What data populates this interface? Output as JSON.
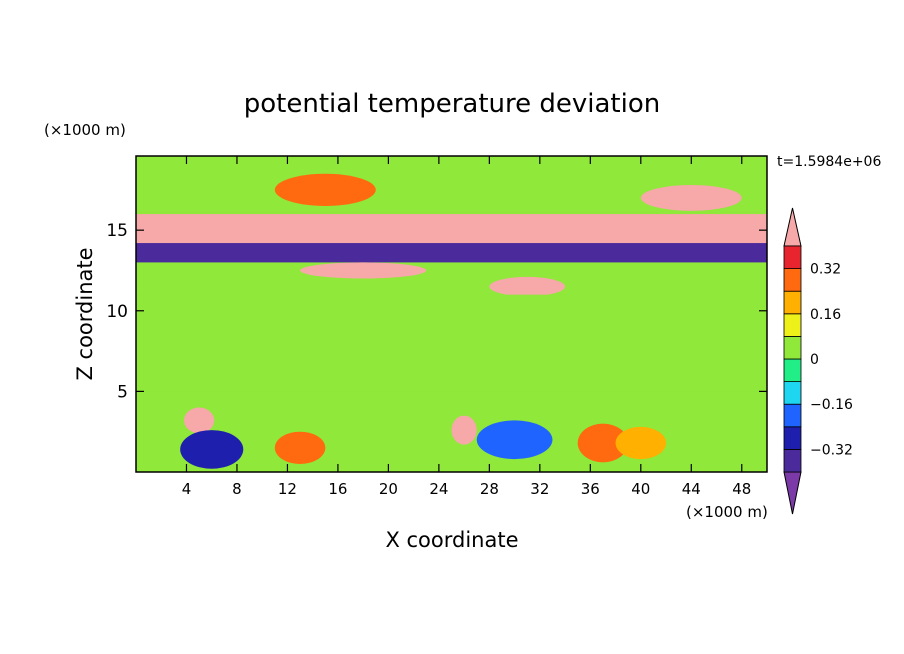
{
  "chart_data": {
    "type": "heatmap",
    "title": "potential temperature deviation",
    "xlabel": "X coordinate",
    "ylabel": "Z coordinate",
    "x_unit": "(×1000 m)",
    "y_unit": "(×1000 m)",
    "time_label": "t=1.5984e+06",
    "xlim": [
      0,
      50
    ],
    "ylim": [
      0,
      19.6
    ],
    "x_ticks": [
      "4",
      "8",
      "12",
      "16",
      "20",
      "24",
      "28",
      "32",
      "36",
      "40",
      "44",
      "48"
    ],
    "y_ticks": [
      "5",
      "10",
      "15"
    ],
    "colorbar": {
      "levels": [
        -0.4,
        -0.32,
        -0.24,
        -0.16,
        -0.08,
        0,
        0.08,
        0.16,
        0.24,
        0.32,
        0.4
      ],
      "tick_labels": [
        "0.32",
        "0.16",
        "0",
        "−0.16",
        "−0.32"
      ],
      "colors_low_to_high": [
        "#7b3aa8",
        "#4b2b9b",
        "#1f1fae",
        "#1f64ff",
        "#1fd6f0",
        "#22ee88",
        "#8fe83a",
        "#eef01a",
        "#ffb000",
        "#ff6a10",
        "#e8242e",
        "#f7a8a8"
      ],
      "extend": "both"
    },
    "features": [
      {
        "shape": "band",
        "x": [
          0,
          50
        ],
        "z": [
          14.0,
          16.0
        ],
        "value": 0.48
      },
      {
        "shape": "band",
        "x": [
          0,
          50
        ],
        "z": [
          13.0,
          14.2
        ],
        "value": -0.4
      },
      {
        "shape": "ellipse",
        "cx": 18,
        "cz": 12.5,
        "rx": 5,
        "rz": 0.5,
        "value": 0.48
      },
      {
        "shape": "ellipse",
        "cx": 31,
        "cz": 11.5,
        "rx": 3,
        "rz": 0.6,
        "value": 0.48
      },
      {
        "shape": "ellipse",
        "cx": 15,
        "cz": 17.5,
        "rx": 4,
        "rz": 1.0,
        "value": 0.24
      },
      {
        "shape": "ellipse",
        "cx": 44,
        "cz": 17.0,
        "rx": 4,
        "rz": 0.8,
        "value": 0.48
      },
      {
        "shape": "ellipse",
        "cx": 5,
        "cz": 3.2,
        "rx": 1.2,
        "rz": 0.8,
        "value": 0.48
      },
      {
        "shape": "ellipse",
        "cx": 26,
        "cz": 2.6,
        "rx": 1.0,
        "rz": 0.9,
        "value": 0.48
      },
      {
        "shape": "ellipse",
        "cx": 6,
        "cz": 1.4,
        "rx": 2.5,
        "rz": 1.2,
        "value": -0.32
      },
      {
        "shape": "ellipse",
        "cx": 30,
        "cz": 2.0,
        "rx": 3,
        "rz": 1.2,
        "value": -0.24
      },
      {
        "shape": "ellipse",
        "cx": 37,
        "cz": 1.8,
        "rx": 2,
        "rz": 1.2,
        "value": 0.24
      },
      {
        "shape": "ellipse",
        "cx": 40,
        "cz": 1.8,
        "rx": 2,
        "rz": 1.0,
        "value": 0.16
      },
      {
        "shape": "ellipse",
        "cx": 13,
        "cz": 1.5,
        "rx": 2,
        "rz": 1.0,
        "value": 0.24
      },
      {
        "shape": "band",
        "x": [
          0,
          50
        ],
        "z": [
          5,
          11
        ],
        "value": 0.04
      }
    ]
  }
}
